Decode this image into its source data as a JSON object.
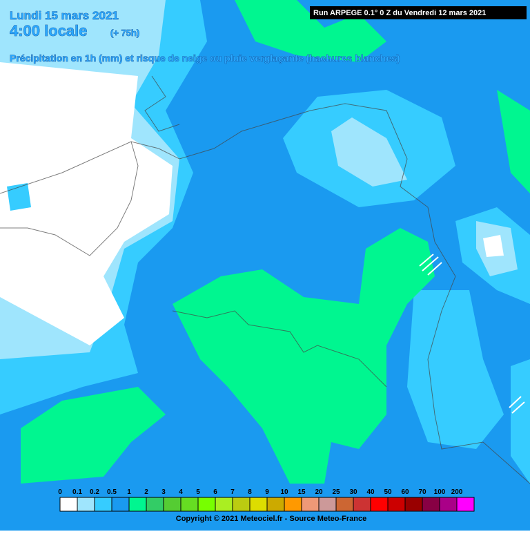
{
  "header": {
    "date": "Lundi 15 mars 2021",
    "time": "4:00 locale",
    "lead": "(+ 75h)",
    "subtitle": "Précipitation en 1h (mm) et risque de neige ou pluie verglaçante (hachures blanches)",
    "run": "Run ARPEGE 0.1° 0 Z du Vendredi 12 mars 2021"
  },
  "legend": [
    {
      "label": "0",
      "color": "#ffffff"
    },
    {
      "label": "0.1",
      "color": "#9fe5fd"
    },
    {
      "label": "0.2",
      "color": "#36ccff"
    },
    {
      "label": "0.5",
      "color": "#1a9af0"
    },
    {
      "label": "1",
      "color": "#00f690"
    },
    {
      "label": "2",
      "color": "#33cc66"
    },
    {
      "label": "3",
      "color": "#55cc33"
    },
    {
      "label": "4",
      "color": "#66dd22"
    },
    {
      "label": "5",
      "color": "#77ff00"
    },
    {
      "label": "6",
      "color": "#aaee22"
    },
    {
      "label": "7",
      "color": "#bbcc11"
    },
    {
      "label": "8",
      "color": "#dddd00"
    },
    {
      "label": "9",
      "color": "#ccaa00"
    },
    {
      "label": "10",
      "color": "#ff9900"
    },
    {
      "label": "15",
      "color": "#ee9977"
    },
    {
      "label": "20",
      "color": "#cc9999"
    },
    {
      "label": "25",
      "color": "#cc6633"
    },
    {
      "label": "30",
      "color": "#cc3333"
    },
    {
      "label": "40",
      "color": "#ff0000"
    },
    {
      "label": "50",
      "color": "#cc0000"
    },
    {
      "label": "60",
      "color": "#990000"
    },
    {
      "label": "70",
      "color": "#880044"
    },
    {
      "label": "100",
      "color": "#aa0088"
    },
    {
      "label": "200",
      "color": "#ff00ff"
    }
  ],
  "footer": {
    "copyright": "Copyright © 2021 Meteociel.fr - Source Meteo-France"
  }
}
